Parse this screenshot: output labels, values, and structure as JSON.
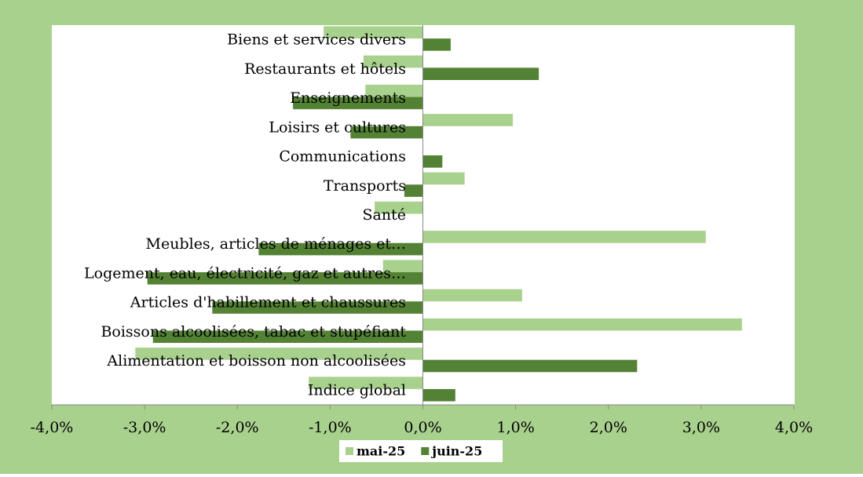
{
  "chart_data": {
    "type": "hbar",
    "categories": [
      "Indice global",
      "Alimentation et boisson non alcoolisées",
      "Boissons alcoolisées, tabac et stupéfiant",
      "Articles d'habillement et chaussures",
      "Logement, eau, électricité, gaz et autres…",
      "Meubles, articles de ménages et…",
      "Santé",
      "Transports",
      "Communications",
      "Loisirs et cultures",
      "Enseignements",
      "Restaurants et hôtels",
      "Biens et services divers"
    ],
    "series": [
      {
        "name": "mai-25",
        "color": "#a9d18e",
        "values": [
          -1.23,
          -3.1,
          3.44,
          1.07,
          -0.43,
          3.05,
          -0.52,
          0.45,
          0,
          0.97,
          -0.62,
          -0.64,
          -1.07
        ]
      },
      {
        "name": "juin-25",
        "color": "#548235",
        "values": [
          0.35,
          2.31,
          -2.91,
          -2.27,
          -2.97,
          -1.77,
          0,
          -0.2,
          0.21,
          -0.78,
          -1.4,
          1.25,
          0.3
        ]
      }
    ],
    "xlim": [
      -4,
      4
    ],
    "xticks": [
      {
        "value": -4,
        "label": "-4,0%"
      },
      {
        "value": -3,
        "label": "-3,0%"
      },
      {
        "value": -2,
        "label": "-2,0%"
      },
      {
        "value": -1,
        "label": "-1,0%"
      },
      {
        "value": 0,
        "label": "0,0%"
      },
      {
        "value": 1,
        "label": "1,0%"
      },
      {
        "value": 2,
        "label": "2,0%"
      },
      {
        "value": 3,
        "label": "3,0%"
      },
      {
        "value": 4,
        "label": "4,0%"
      }
    ],
    "legend": "bottom"
  }
}
